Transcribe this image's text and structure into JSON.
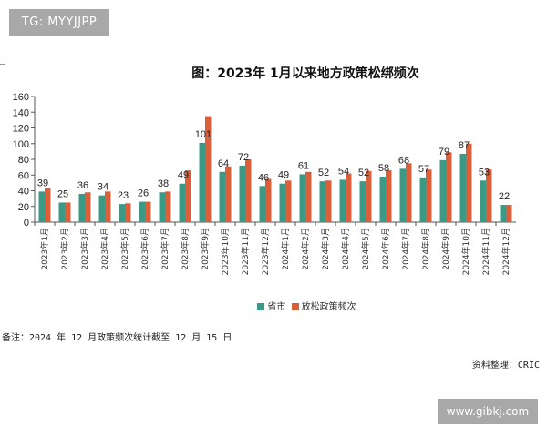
{
  "badge": "TG: MYYJJPP",
  "watermark_site": "www.gibkj.com",
  "footnote": "备注：2024 年 12 月政策频次统计截至 12 月 15 日",
  "source": "资料整理：CRIC",
  "chart_data": {
    "type": "bar",
    "title": "图：2023年 1月以来地方政策松绑频次",
    "xlabel": "",
    "ylabel": "",
    "ylim": [
      0,
      160
    ],
    "yticks": [
      0,
      20,
      40,
      60,
      80,
      100,
      120,
      140,
      160
    ],
    "grid": false,
    "legend_position": "bottom",
    "categories": [
      "2023年1月",
      "2023年2月",
      "2023年3月",
      "2023年4月",
      "2023年5月",
      "2023年6月",
      "2023年7月",
      "2023年8月",
      "2023年9月",
      "2023年10月",
      "2023年11月",
      "2023年12月",
      "2024年1月",
      "2024年2月",
      "2024年3月",
      "2024年4月",
      "2024年5月",
      "2024年6月",
      "2024年7月",
      "2024年8月",
      "2024年9月",
      "2024年10月",
      "2024年11月",
      "2024年12月"
    ],
    "series": [
      {
        "name": "省市",
        "color": "#3a9a86",
        "labeled": true,
        "values": [
          39,
          25,
          36,
          34,
          23,
          26,
          38,
          49,
          101,
          64,
          72,
          46,
          49,
          61,
          52,
          54,
          52,
          58,
          68,
          57,
          79,
          87,
          53,
          22
        ]
      },
      {
        "name": "放松政策频次",
        "color": "#d9603b",
        "labeled": false,
        "values": [
          43,
          25,
          38,
          39,
          24,
          26,
          39,
          66,
          135,
          71,
          80,
          55,
          53,
          64,
          53,
          62,
          65,
          66,
          75,
          67,
          89,
          100,
          67,
          22
        ]
      }
    ]
  }
}
